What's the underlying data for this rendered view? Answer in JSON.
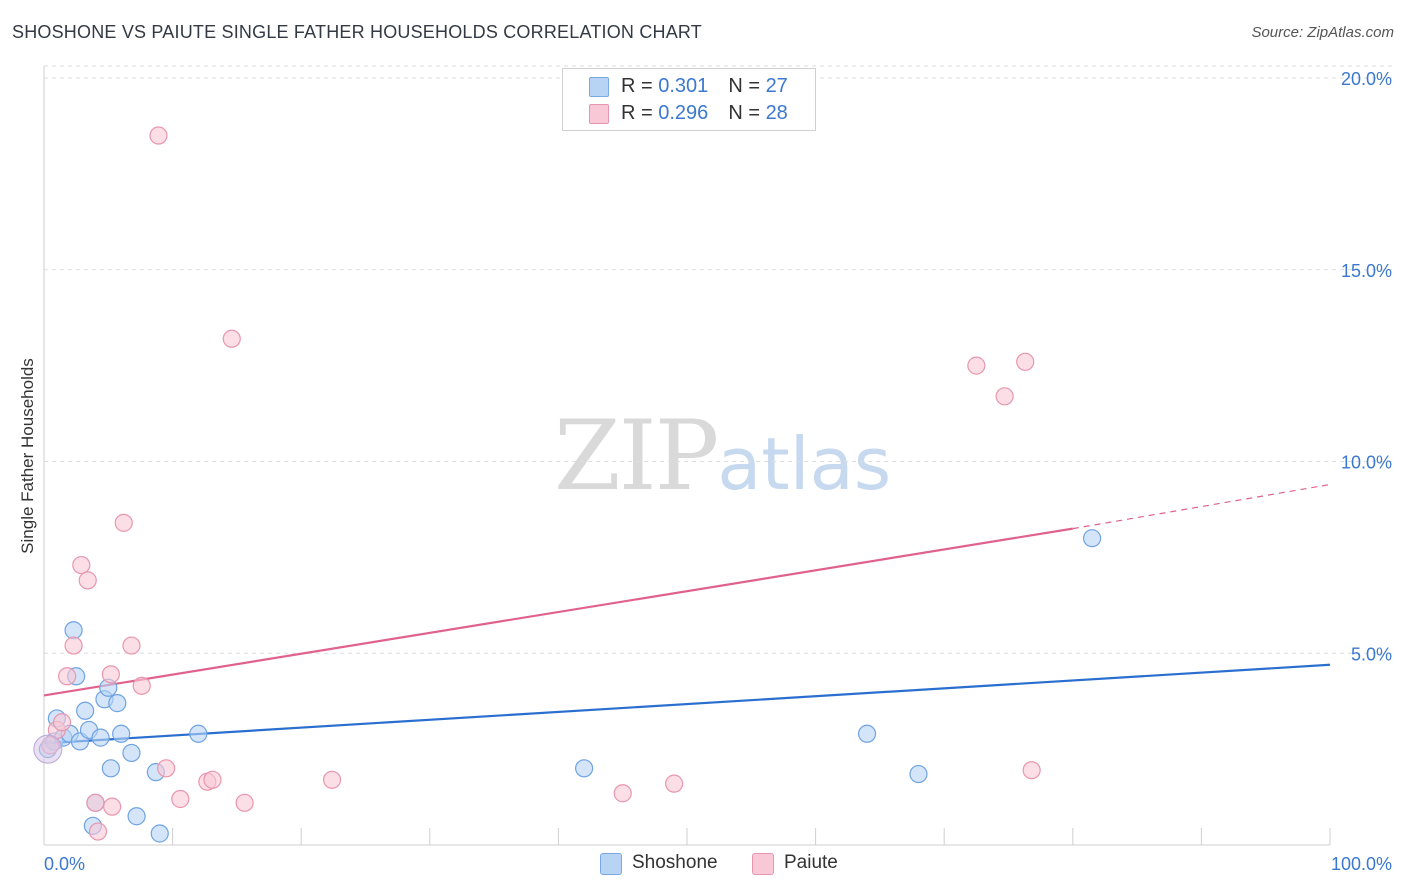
{
  "header": {
    "title": "SHOSHONE VS PAIUTE SINGLE FATHER HOUSEHOLDS CORRELATION CHART",
    "source": "Source: ZipAtlas.com"
  },
  "watermark": {
    "zip": "ZIP",
    "atlas": "atlas"
  },
  "legend": {
    "rows": [
      {
        "r_label": "R = ",
        "r_value": "0.301",
        "n_label": "N = ",
        "n_value": "27",
        "color": "#b8d4f5",
        "border": "#7aa8e0"
      },
      {
        "r_label": "R = ",
        "r_value": "0.296",
        "n_label": "N = ",
        "n_value": "28",
        "color": "#f9c8d6",
        "border": "#e896ae"
      }
    ]
  },
  "bottom_legend": [
    {
      "label": "Shoshone",
      "color": "#b8d4f5",
      "border": "#7aa8e0"
    },
    {
      "label": "Paiute",
      "color": "#f9c8d6",
      "border": "#e896ae"
    }
  ],
  "chart_data": {
    "type": "scatter",
    "title": "SHOSHONE VS PAIUTE SINGLE FATHER HOUSEHOLDS CORRELATION CHART",
    "ylabel": "Single Father Households",
    "xlabel": "",
    "xlim": [
      0,
      100
    ],
    "ylim": [
      0,
      20.5
    ],
    "x_ticks": [
      "0.0%",
      "100.0%"
    ],
    "y_ticks": [
      {
        "value": 5,
        "label": "5.0%"
      },
      {
        "value": 10,
        "label": "10.0%"
      },
      {
        "value": 15,
        "label": "15.0%"
      },
      {
        "value": 20,
        "label": "20.0%"
      }
    ],
    "grid": true,
    "series": [
      {
        "name": "Shoshone",
        "color": "#6fa3e2",
        "fill": "#b8d4f5",
        "line_color": "#2a6fd0",
        "trend": {
          "x0": 0,
          "y0": 2.65,
          "x1": 100,
          "y1": 4.7
        },
        "points": [
          [
            0.3,
            2.5
          ],
          [
            0.8,
            2.7
          ],
          [
            1.0,
            3.3
          ],
          [
            1.5,
            2.8
          ],
          [
            2.0,
            2.9
          ],
          [
            2.3,
            5.6
          ],
          [
            2.5,
            4.4
          ],
          [
            2.8,
            2.7
          ],
          [
            3.2,
            3.5
          ],
          [
            3.5,
            3.0
          ],
          [
            3.8,
            0.5
          ],
          [
            4.0,
            1.1
          ],
          [
            4.4,
            2.8
          ],
          [
            4.7,
            3.8
          ],
          [
            5.0,
            4.1
          ],
          [
            5.2,
            2.0
          ],
          [
            5.7,
            3.7
          ],
          [
            6.0,
            2.9
          ],
          [
            6.8,
            2.4
          ],
          [
            7.2,
            0.75
          ],
          [
            8.7,
            1.9
          ],
          [
            9.0,
            0.3
          ],
          [
            12.0,
            2.9
          ],
          [
            42.0,
            2.0
          ],
          [
            64.0,
            2.9
          ],
          [
            68.0,
            1.85
          ],
          [
            81.5,
            8.0
          ]
        ]
      },
      {
        "name": "Paiute",
        "color": "#e896ae",
        "fill": "#f9c8d6",
        "line_color": "#e0628c",
        "trend": {
          "x0": 0,
          "y0": 3.9,
          "x1": 80,
          "y1": 8.25
        },
        "trend_dashed_to": {
          "x": 100,
          "y": 9.4
        },
        "points": [
          [
            0.5,
            2.6
          ],
          [
            1.0,
            3.0
          ],
          [
            1.4,
            3.2
          ],
          [
            1.8,
            4.4
          ],
          [
            2.3,
            5.2
          ],
          [
            2.9,
            7.3
          ],
          [
            3.4,
            6.9
          ],
          [
            4.0,
            1.1
          ],
          [
            4.2,
            0.35
          ],
          [
            5.2,
            4.45
          ],
          [
            5.3,
            1.0
          ],
          [
            6.2,
            8.4
          ],
          [
            6.8,
            5.2
          ],
          [
            7.6,
            4.15
          ],
          [
            8.9,
            18.5
          ],
          [
            9.5,
            2.0
          ],
          [
            10.6,
            1.2
          ],
          [
            12.7,
            1.65
          ],
          [
            13.1,
            1.7
          ],
          [
            14.6,
            13.2
          ],
          [
            15.6,
            1.1
          ],
          [
            22.4,
            1.7
          ],
          [
            45.0,
            1.35
          ],
          [
            49.0,
            1.6
          ],
          [
            72.5,
            12.5
          ],
          [
            74.7,
            11.7
          ],
          [
            76.3,
            12.6
          ],
          [
            76.8,
            1.95
          ]
        ]
      }
    ]
  }
}
